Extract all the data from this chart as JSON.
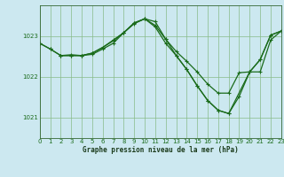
{
  "title": "Graphe pression niveau de la mer (hPa)",
  "bg_color": "#cce8f0",
  "plot_bg_color": "#cce8f0",
  "grid_color": "#88bb88",
  "line_color": "#1a6b1a",
  "xlim": [
    0,
    23
  ],
  "ylim": [
    1020.5,
    1023.75
  ],
  "yticks": [
    1021,
    1022,
    1023
  ],
  "xticks": [
    0,
    1,
    2,
    3,
    4,
    5,
    6,
    7,
    8,
    9,
    10,
    11,
    12,
    13,
    14,
    15,
    16,
    17,
    18,
    19,
    20,
    21,
    22,
    23
  ],
  "series1_x": [
    0,
    1,
    2,
    3,
    4,
    5,
    6,
    7,
    8,
    9,
    10,
    11,
    12,
    13,
    14,
    15,
    16,
    17,
    18,
    19,
    20,
    21,
    22,
    23
  ],
  "series1_y": [
    1022.82,
    1022.68,
    1022.52,
    1022.54,
    1022.52,
    1022.58,
    1022.72,
    1022.88,
    1023.08,
    1023.3,
    1023.42,
    1023.26,
    1022.92,
    1022.62,
    1022.38,
    1022.12,
    1021.82,
    1021.6,
    1021.6,
    1022.1,
    1022.12,
    1022.12,
    1022.9,
    1023.12
  ],
  "series2_x": [
    0,
    1,
    2,
    3,
    4,
    5,
    6,
    7,
    8,
    9,
    10,
    11,
    12,
    13,
    14,
    15,
    16,
    17,
    18,
    20,
    21,
    22,
    23
  ],
  "series2_y": [
    1022.82,
    1022.68,
    1022.52,
    1022.52,
    1022.52,
    1022.58,
    1022.72,
    1022.9,
    1023.08,
    1023.32,
    1023.42,
    1023.22,
    1022.82,
    1022.52,
    1022.18,
    1021.78,
    1021.42,
    1021.18,
    1021.1,
    1022.12,
    1022.42,
    1023.02,
    1023.12
  ],
  "series3_x": [
    2,
    3,
    4,
    5,
    6,
    7,
    8,
    9,
    10,
    11,
    12,
    13,
    14,
    15,
    16,
    17,
    18,
    19,
    20,
    21,
    22,
    23
  ],
  "series3_y": [
    1022.52,
    1022.52,
    1022.52,
    1022.55,
    1022.68,
    1022.82,
    1023.08,
    1023.32,
    1023.42,
    1023.35,
    1022.92,
    1022.52,
    1022.18,
    1021.78,
    1021.42,
    1021.18,
    1021.1,
    1021.52,
    1022.12,
    1022.42,
    1023.02,
    1023.12
  ]
}
